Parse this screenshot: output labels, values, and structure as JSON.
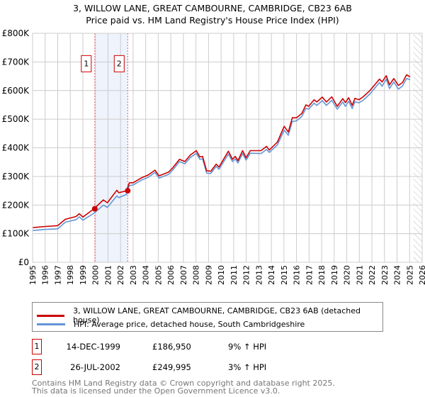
{
  "header": {
    "title": "3, WILLOW LANE, GREAT CAMBOURNE, CAMBRIDGE, CB23 6AB",
    "subtitle": "Price paid vs. HM Land Registry's House Price Index (HPI)"
  },
  "colors": {
    "property": "#cc0000",
    "hpi": "#6495d6",
    "band": "#eef3fc",
    "marker_border": "#cc0000"
  },
  "chart_data": {
    "type": "line",
    "title": "Price paid vs. HM Land Registry's House Price Index (HPI)",
    "xlabel": "",
    "ylabel": "",
    "xlim": [
      1995,
      2026
    ],
    "ylim": [
      0,
      800000
    ],
    "grid": true,
    "y_ticks": [
      0,
      100000,
      200000,
      300000,
      400000,
      500000,
      600000,
      700000,
      800000
    ],
    "y_tick_labels": [
      "£0",
      "£100K",
      "£200K",
      "£300K",
      "£400K",
      "£500K",
      "£600K",
      "£700K",
      "£800K"
    ],
    "x_ticks": [
      "1995",
      "1996",
      "1997",
      "1998",
      "1999",
      "2000",
      "2001",
      "2002",
      "2003",
      "2004",
      "2005",
      "2006",
      "2007",
      "2008",
      "2009",
      "2010",
      "2011",
      "2012",
      "2013",
      "2014",
      "2015",
      "2016",
      "2017",
      "2018",
      "2019",
      "2020",
      "2021",
      "2022",
      "2023",
      "2024",
      "2025",
      "2026"
    ],
    "x": [
      1995.0,
      1996.0,
      1997.0,
      1997.6,
      1998.46,
      1998.72,
      1999.0,
      1999.89,
      2000.63,
      2000.95,
      2001.71,
      2001.86,
      2002.47,
      2002.7,
      2003.0,
      2003.66,
      2004.2,
      2004.74,
      2005.06,
      2005.82,
      2006.15,
      2006.69,
      2007.12,
      2007.55,
      2008.03,
      2008.31,
      2008.53,
      2008.85,
      2009.18,
      2009.61,
      2009.83,
      2010.58,
      2010.91,
      2011.13,
      2011.34,
      2011.71,
      2011.99,
      2012.32,
      2013.18,
      2013.61,
      2013.83,
      2014.48,
      2015.02,
      2015.35,
      2015.67,
      2016.0,
      2016.43,
      2016.75,
      2016.97,
      2017.4,
      2017.62,
      2018.05,
      2018.38,
      2018.81,
      2019.24,
      2019.68,
      2019.89,
      2020.15,
      2020.43,
      2020.65,
      2020.97,
      2021.3,
      2021.84,
      2022.6,
      2022.81,
      2023.14,
      2023.4,
      2023.74,
      2024.11,
      2024.44,
      2024.76,
      2025.04
    ],
    "series": [
      {
        "name": "3, WILLOW LANE, GREAT CAMBOURNE, CAMBRIDGE, CB23 6AB (detached house)",
        "unit": "thousand GBP",
        "values": [
          121,
          125,
          128,
          150,
          160,
          170,
          158,
          187,
          218,
          208,
          252,
          243,
          250,
          278,
          278,
          295,
          305,
          322,
          302,
          315,
          330,
          360,
          352,
          375,
          390,
          368,
          370,
          320,
          318,
          343,
          333,
          388,
          360,
          370,
          355,
          390,
          365,
          390,
          390,
          405,
          392,
          420,
          475,
          455,
          505,
          505,
          520,
          550,
          545,
          568,
          560,
          577,
          560,
          578,
          545,
          572,
          558,
          575,
          548,
          573,
          568,
          578,
          600,
          640,
          630,
          652,
          620,
          642,
          618,
          628,
          655,
          648
        ]
      },
      {
        "name": "HPI: Average price, detached house, South Cambridgeshire",
        "unit": "thousand GBP",
        "values": [
          111,
          115,
          117,
          140,
          149,
          159,
          147,
          172,
          200,
          192,
          232,
          226,
          237,
          268,
          270,
          287,
          297,
          314,
          294,
          307,
          322,
          352,
          344,
          366,
          381,
          360,
          361,
          312,
          310,
          335,
          325,
          378,
          352,
          361,
          347,
          380,
          357,
          381,
          380,
          394,
          384,
          410,
          462,
          444,
          492,
          494,
          510,
          538,
          535,
          556,
          548,
          565,
          548,
          566,
          535,
          560,
          545,
          563,
          537,
          561,
          557,
          566,
          588,
          628,
          615,
          640,
          607,
          630,
          605,
          616,
          642,
          638
        ]
      }
    ],
    "sales": [
      {
        "label": "1",
        "x": 1999.95,
        "value": 186950
      },
      {
        "label": "2",
        "x": 2002.57,
        "value": 249995
      }
    ],
    "forecast_hatch_start": 2025.3,
    "legend_position": "below"
  },
  "legend": {
    "property": "3, WILLOW LANE, GREAT CAMBOURNE, CAMBRIDGE, CB23 6AB (detached house)",
    "hpi": "HPI: Average price, detached house, South Cambridgeshire"
  },
  "transactions": [
    {
      "num": "1",
      "date": "14-DEC-1999",
      "price": "£186,950",
      "hpi": "9% ↑ HPI"
    },
    {
      "num": "2",
      "date": "26-JUL-2002",
      "price": "£249,995",
      "hpi": "3% ↑ HPI"
    }
  ],
  "footer": {
    "line1": "Contains HM Land Registry data © Crown copyright and database right 2025.",
    "line2": "This data is licensed under the Open Government Licence v3.0."
  }
}
